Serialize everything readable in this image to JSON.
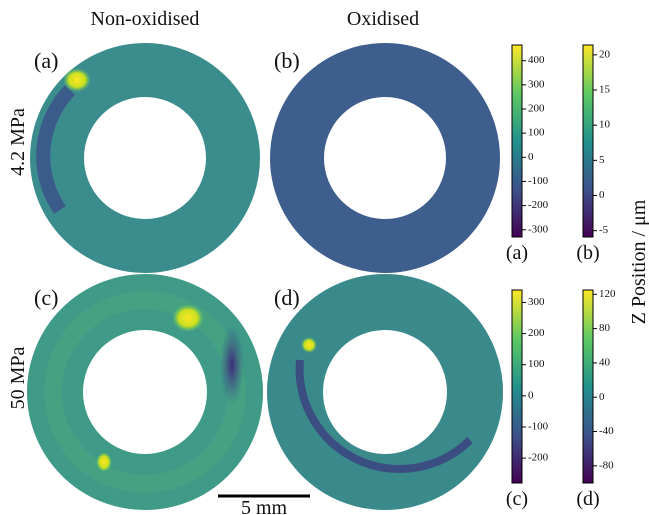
{
  "columns": [
    "Non-oxidised",
    "Oxidised"
  ],
  "rows": [
    "4.2 MPa",
    "50 MPa"
  ],
  "panels": [
    {
      "label": "(a)"
    },
    {
      "label": "(b)"
    },
    {
      "label": "(c)"
    },
    {
      "label": "(d)"
    }
  ],
  "scale_bar": "5 mm",
  "colorbar_axis_label": "Z Position / μm",
  "chart_data": [
    {
      "type": "colorbar",
      "label": "(a)",
      "ylim": [
        -330,
        465
      ],
      "yticks": [
        400,
        300,
        200,
        100,
        0,
        -100,
        -200,
        -300
      ]
    },
    {
      "type": "colorbar",
      "label": "(b)",
      "ylim": [
        -5.9,
        21.4
      ],
      "yticks": [
        20,
        15,
        10,
        5,
        0,
        -5
      ]
    },
    {
      "type": "colorbar",
      "label": "(c)",
      "ylim": [
        -280,
        340
      ],
      "yticks": [
        300,
        200,
        100,
        0,
        -100,
        -200
      ]
    },
    {
      "type": "colorbar",
      "label": "(d)",
      "ylim": [
        -100,
        125
      ],
      "yticks": [
        120,
        80,
        40,
        0,
        -40,
        -80
      ]
    }
  ]
}
